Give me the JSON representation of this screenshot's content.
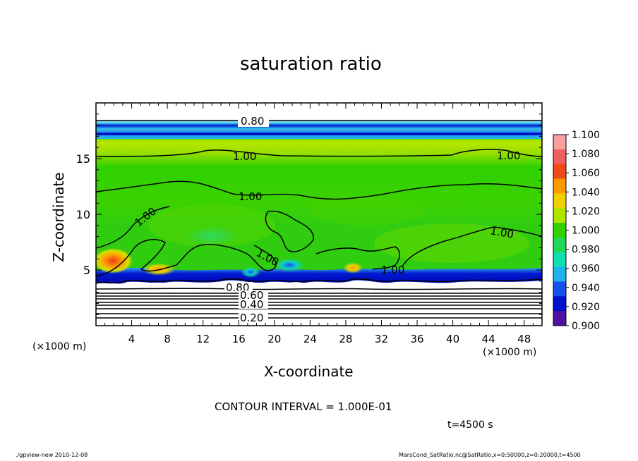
{
  "chart_data": {
    "type": "heatmap",
    "title": "saturation ratio",
    "xlabel": "X-coordinate",
    "ylabel": "Z-coordinate",
    "x_unit": "(×1000 m)",
    "z_unit": "(×1000 m)",
    "xlim": [
      0,
      50
    ],
    "ylim": [
      0,
      20
    ],
    "x_ticks": [
      "4",
      "8",
      "12",
      "16",
      "20",
      "24",
      "28",
      "32",
      "36",
      "40",
      "44",
      "48"
    ],
    "y_ticks": [
      "5",
      "10",
      "15"
    ],
    "contour_interval_text": "CONTOUR INTERVAL = 1.000E-01",
    "time_text": "t=4500 s",
    "contour_labels": [
      "0.80",
      "1.00",
      "1.00",
      "1.00",
      "1.00",
      "1.00",
      "1.00",
      "1.00",
      "0.80",
      "0.60",
      "0.40",
      "0.20"
    ],
    "colorbar": {
      "labels": [
        "1.100",
        "1.080",
        "1.060",
        "1.040",
        "1.020",
        "1.000",
        "0.980",
        "0.960",
        "0.940",
        "0.920",
        "0.900"
      ],
      "colors": [
        "#f8a0a0",
        "#f06060",
        "#ee4a1a",
        "#ff9900",
        "#f0d000",
        "#aee600",
        "#33d000",
        "#20d858",
        "#10e0b0",
        "#20b0ee",
        "#1850ee",
        "#0010cc",
        "#5010a0"
      ]
    },
    "grid": false,
    "legend": "right"
  },
  "footer": {
    "left": "./gpview-new 2010-12-08",
    "right": "MarsCond_SatRatio.nc@SatRatio,x=0:50000,z=0:20000,t=4500"
  },
  "colors": {
    "frame": "#000000",
    "background": "#ffffff",
    "field_green": "#22d400",
    "field_yellowgreen": "#a6e400",
    "cold_band": "#0020d8"
  }
}
